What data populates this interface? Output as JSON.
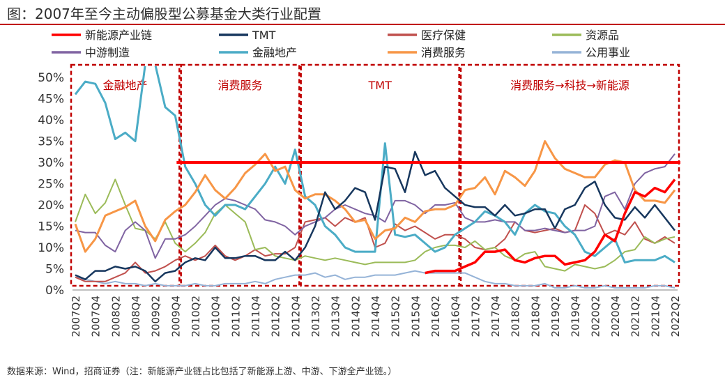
{
  "title": "图：2007年至今主动偏股型公募基金大类行业配置",
  "source": "数据来源：Wind，招商证券（注：新能源产业链占比包括了新能源上游、中游、下游全产业链。）",
  "chart_data": {
    "type": "line",
    "title": "",
    "xlabel": "",
    "ylabel": "",
    "ylim": [
      0,
      0.52
    ],
    "yticks": [
      "0%",
      "5%",
      "10%",
      "15%",
      "20%",
      "25%",
      "30%",
      "35%",
      "40%",
      "45%",
      "50%"
    ],
    "grid": false,
    "legend_position": "top",
    "x": [
      "2007Q2",
      "2007Q3",
      "2007Q4",
      "2008Q1",
      "2008Q2",
      "2008Q3",
      "2008Q4",
      "2009Q1",
      "2009Q2",
      "2009Q3",
      "2009Q4",
      "2010Q1",
      "2010Q2",
      "2010Q3",
      "2010Q4",
      "2011Q1",
      "2011Q2",
      "2011Q3",
      "2011Q4",
      "2012Q1",
      "2012Q2",
      "2012Q3",
      "2012Q4",
      "2013Q1",
      "2013Q2",
      "2013Q3",
      "2013Q4",
      "2014Q1",
      "2014Q2",
      "2014Q3",
      "2014Q4",
      "2015Q1",
      "2015Q2",
      "2015Q3",
      "2015Q4",
      "2016Q1",
      "2016Q2",
      "2016Q3",
      "2016Q4",
      "2017Q1",
      "2017Q2",
      "2017Q3",
      "2017Q4",
      "2018Q1",
      "2018Q2",
      "2018Q3",
      "2018Q4",
      "2019Q1",
      "2019Q2",
      "2019Q3",
      "2019Q4",
      "2020Q1",
      "2020Q2",
      "2020Q3",
      "2020Q4",
      "2021Q1",
      "2021Q2",
      "2021Q3",
      "2021Q4",
      "2022Q1",
      "2022Q2"
    ],
    "xtick_labels": [
      "2007Q2",
      "2007Q4",
      "2008Q2",
      "2008Q4",
      "2009Q2",
      "2009Q4",
      "2010Q2",
      "2010Q4",
      "2011Q2",
      "2011Q4",
      "2012Q2",
      "2012Q4",
      "2013Q2",
      "2013Q4",
      "2014Q2",
      "2014Q4",
      "2015Q2",
      "2015Q4",
      "2016Q2",
      "2016Q4",
      "2017Q2",
      "2017Q4",
      "2018Q2",
      "2018Q4",
      "2019Q2",
      "2019Q4",
      "2020Q2",
      "2020Q4",
      "2021Q2",
      "2021Q4",
      "2022Q2"
    ],
    "series": [
      {
        "name": "新能源产业链",
        "color": "#ff0000",
        "width": 3.5,
        "values": [
          null,
          null,
          null,
          null,
          null,
          null,
          null,
          null,
          null,
          null,
          null,
          null,
          null,
          null,
          null,
          null,
          null,
          null,
          null,
          null,
          null,
          null,
          null,
          null,
          null,
          null,
          null,
          null,
          null,
          null,
          null,
          null,
          null,
          null,
          null,
          0.04,
          0.045,
          0.045,
          0.045,
          0.055,
          0.065,
          0.09,
          0.09,
          0.095,
          0.07,
          0.065,
          0.075,
          0.08,
          0.08,
          0.06,
          0.065,
          0.07,
          0.09,
          0.13,
          0.115,
          0.18,
          0.23,
          0.22,
          0.24,
          0.23,
          0.26
        ]
      },
      {
        "name": "TMT",
        "color": "#17375e",
        "width": 2.5,
        "values": [
          0.035,
          0.025,
          0.045,
          0.045,
          0.055,
          0.05,
          0.055,
          0.045,
          0.02,
          0.04,
          0.045,
          0.065,
          0.075,
          0.07,
          0.1,
          0.075,
          0.075,
          0.08,
          0.08,
          0.07,
          0.07,
          0.09,
          0.07,
          0.1,
          0.15,
          0.23,
          0.19,
          0.21,
          0.24,
          0.23,
          0.165,
          0.29,
          0.285,
          0.23,
          0.325,
          0.27,
          0.28,
          0.24,
          0.22,
          0.2,
          0.195,
          0.195,
          0.175,
          0.2,
          0.175,
          0.18,
          0.19,
          0.19,
          0.145,
          0.19,
          0.2,
          0.24,
          0.255,
          0.2,
          0.17,
          0.165,
          0.195,
          0.17,
          0.2,
          0.17,
          0.14
        ]
      },
      {
        "name": "医疗保健",
        "color": "#c0504d",
        "width": 2,
        "values": [
          0.03,
          0.02,
          0.02,
          0.02,
          0.03,
          0.04,
          0.065,
          0.04,
          0.045,
          0.055,
          0.07,
          0.08,
          0.07,
          0.08,
          0.105,
          0.08,
          0.07,
          0.08,
          0.095,
          0.08,
          0.085,
          0.085,
          0.1,
          0.16,
          0.165,
          0.17,
          0.15,
          0.17,
          0.16,
          0.17,
          0.1,
          0.11,
          0.155,
          0.14,
          0.15,
          0.135,
          0.12,
          0.13,
          0.13,
          0.12,
          0.1,
          0.095,
          0.1,
          0.12,
          0.16,
          0.14,
          0.135,
          0.14,
          0.145,
          0.135,
          0.14,
          0.2,
          0.18,
          0.13,
          0.14,
          0.13,
          0.16,
          0.12,
          0.11,
          0.125,
          0.11
        ]
      },
      {
        "name": "资源品",
        "color": "#9bbb59",
        "width": 2,
        "values": [
          0.16,
          0.225,
          0.18,
          0.205,
          0.26,
          0.2,
          0.145,
          0.14,
          0.12,
          0.16,
          0.11,
          0.09,
          0.11,
          0.135,
          0.18,
          0.2,
          0.18,
          0.16,
          0.095,
          0.1,
          0.08,
          0.075,
          0.07,
          0.08,
          0.075,
          0.07,
          0.075,
          0.07,
          0.065,
          0.06,
          0.065,
          0.065,
          0.065,
          0.065,
          0.07,
          0.09,
          0.1,
          0.105,
          0.105,
          0.1,
          0.115,
          0.095,
          0.1,
          0.08,
          0.07,
          0.085,
          0.09,
          0.055,
          0.05,
          0.045,
          0.06,
          0.055,
          0.05,
          0.055,
          0.07,
          0.09,
          0.095,
          0.125,
          0.11,
          0.12,
          0.125
        ]
      },
      {
        "name": "中游制造",
        "color": "#8064a2",
        "width": 2,
        "values": [
          0.14,
          0.135,
          0.135,
          0.105,
          0.09,
          0.14,
          0.16,
          0.14,
          0.075,
          0.12,
          0.12,
          0.13,
          0.15,
          0.175,
          0.2,
          0.215,
          0.21,
          0.2,
          0.19,
          0.165,
          0.16,
          0.15,
          0.13,
          0.15,
          0.16,
          0.17,
          0.19,
          0.2,
          0.19,
          0.18,
          0.175,
          0.16,
          0.21,
          0.21,
          0.2,
          0.18,
          0.2,
          0.2,
          0.205,
          0.17,
          0.16,
          0.16,
          0.165,
          0.16,
          0.16,
          0.14,
          0.14,
          0.145,
          0.14,
          0.135,
          0.14,
          0.14,
          0.15,
          0.22,
          0.23,
          0.19,
          0.25,
          0.275,
          0.285,
          0.29,
          0.32
        ]
      },
      {
        "name": "金融地产",
        "color": "#4bacc6",
        "width": 3,
        "values": [
          0.46,
          0.49,
          0.485,
          0.44,
          0.355,
          0.37,
          0.35,
          0.53,
          0.53,
          0.43,
          0.41,
          0.29,
          0.25,
          0.2,
          0.175,
          0.2,
          0.2,
          0.19,
          0.22,
          0.25,
          0.29,
          0.25,
          0.33,
          0.22,
          0.2,
          0.15,
          0.13,
          0.1,
          0.09,
          0.09,
          0.09,
          0.345,
          0.13,
          0.125,
          0.13,
          0.11,
          0.09,
          0.1,
          0.13,
          0.145,
          0.16,
          0.185,
          0.175,
          0.16,
          0.13,
          0.18,
          0.2,
          0.185,
          0.18,
          0.15,
          0.13,
          0.09,
          0.08,
          0.1,
          0.12,
          0.065,
          0.07,
          0.07,
          0.07,
          0.08,
          0.065
        ]
      },
      {
        "name": "消费服务",
        "color": "#f79646",
        "width": 3,
        "values": [
          0.155,
          0.09,
          0.12,
          0.175,
          0.185,
          0.195,
          0.21,
          0.15,
          0.115,
          0.165,
          0.185,
          0.2,
          0.23,
          0.27,
          0.235,
          0.215,
          0.24,
          0.275,
          0.295,
          0.32,
          0.28,
          0.29,
          0.235,
          0.215,
          0.225,
          0.225,
          0.21,
          0.19,
          0.16,
          0.165,
          0.12,
          0.14,
          0.145,
          0.17,
          0.16,
          0.185,
          0.19,
          0.19,
          0.2,
          0.235,
          0.24,
          0.265,
          0.225,
          0.28,
          0.265,
          0.245,
          0.28,
          0.35,
          0.31,
          0.285,
          0.275,
          0.265,
          0.265,
          0.295,
          0.305,
          0.3,
          0.235,
          0.21,
          0.21,
          0.205,
          0.235
        ]
      },
      {
        "name": "公用事业",
        "color": "#95b3d7",
        "width": 2,
        "values": [
          0.03,
          0.025,
          0.02,
          0.015,
          0.02,
          0.015,
          0.015,
          0.01,
          0.015,
          0.01,
          0.01,
          0.01,
          0.015,
          0.01,
          0.01,
          0.015,
          0.015,
          0.015,
          0.02,
          0.015,
          0.025,
          0.03,
          0.035,
          0.035,
          0.04,
          0.03,
          0.035,
          0.025,
          0.03,
          0.03,
          0.035,
          0.035,
          0.035,
          0.04,
          0.045,
          0.04,
          0.04,
          0.04,
          0.04,
          0.04,
          0.03,
          0.02,
          0.015,
          0.015,
          0.01,
          0.01,
          0.01,
          0.015,
          0.005,
          0.005,
          0.01,
          0.005,
          0.005,
          0.01,
          0.005,
          0.005,
          0.005,
          0.005,
          0.01,
          0.01,
          0.005
        ]
      }
    ],
    "reference_line": {
      "y": 0.3,
      "color": "#ff0000"
    },
    "regions": [
      {
        "label": "金融地产",
        "start": "2007Q2",
        "end": "2009Q4"
      },
      {
        "label": "消费服务",
        "start": "2010Q1",
        "end": "2012Q4"
      },
      {
        "label": "TMT",
        "start": "2013Q1",
        "end": "2016Q4"
      },
      {
        "label": "消费服务→科技→新能源",
        "start": "2017Q1",
        "end": "2022Q2"
      }
    ],
    "region_color": "#c00000",
    "axis_color": "#808080"
  }
}
